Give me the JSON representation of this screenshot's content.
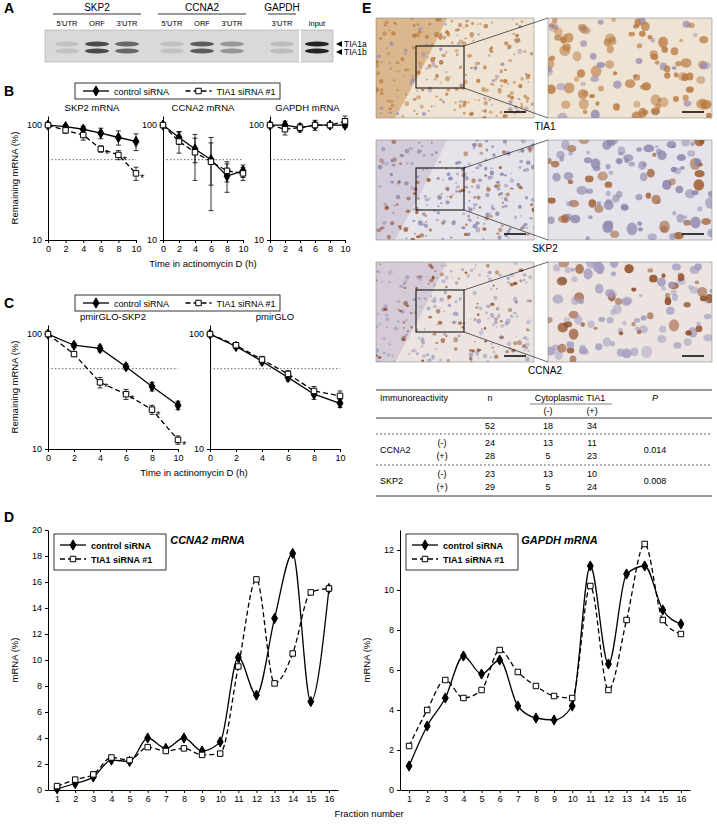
{
  "panel_labels": [
    "A",
    "B",
    "C",
    "D",
    "E"
  ],
  "gel": {
    "groups": [
      {
        "name": "SKP2",
        "lanes": [
          {
            "label": "5'UTR",
            "intensity": 0.12
          },
          {
            "label": "ORF",
            "intensity": 0.75
          },
          {
            "label": "3'UTR",
            "intensity": 0.6
          }
        ]
      },
      {
        "name": "CCNA2",
        "lanes": [
          {
            "label": "5'UTR",
            "intensity": 0.12
          },
          {
            "label": "ORF",
            "intensity": 0.65
          },
          {
            "label": "3'UTR",
            "intensity": 0.35
          }
        ]
      },
      {
        "name": "GAPDH",
        "lanes": [
          {
            "label": "3'UTR",
            "intensity": 0.15
          }
        ]
      }
    ],
    "input_lane": {
      "label": "input",
      "intensity": 0.95
    },
    "bands": [
      "TIA1a",
      "TIA1b"
    ]
  },
  "chart_data": [
    {
      "type": "line",
      "title": "SKP2 mRNA",
      "ylabel": "Remaining mRNA (%)",
      "x": [
        0,
        2,
        4,
        6,
        8,
        10
      ],
      "xlim": [
        0,
        10
      ],
      "xticks": [
        0,
        2,
        4,
        6,
        8,
        10
      ],
      "ylim": [
        10,
        120
      ],
      "yticks": [
        10,
        100
      ],
      "log": "y",
      "reference_y": 50,
      "legend": "top",
      "series": [
        {
          "name": "control siRNA",
          "color": "#000000",
          "marker": "diamond",
          "line_style": "solid",
          "values": [
            100,
            97,
            92,
            85,
            78,
            72
          ],
          "errors": [
            0,
            4,
            6,
            9,
            11,
            12
          ]
        },
        {
          "name": "TIA1 siRNA #1",
          "color": "#000000",
          "marker": "square-open",
          "line_style": "dashed",
          "values": [
            100,
            90,
            82,
            62,
            55,
            38
          ],
          "errors": [
            0,
            5,
            8,
            4,
            5,
            5
          ]
        }
      ],
      "annotations": [
        {
          "text": "*",
          "x": 6,
          "y": 62
        },
        {
          "text": "*",
          "x": 8,
          "y": 55
        },
        {
          "text": "*",
          "x": 10,
          "y": 38
        }
      ]
    },
    {
      "type": "line",
      "title": "CCNA2 mRNA",
      "xlabel": "Time in actinomycin D (h)",
      "x": [
        0,
        2,
        4,
        6,
        8,
        10
      ],
      "xlim": [
        0,
        10
      ],
      "xticks": [
        0,
        2,
        4,
        6,
        8,
        10
      ],
      "ylim": [
        10,
        120
      ],
      "yticks": [
        10,
        100
      ],
      "log": "y",
      "reference_y": 50,
      "series": [
        {
          "color": "#000000",
          "marker": "diamond",
          "line_style": "solid",
          "values": [
            100,
            78,
            62,
            50,
            36,
            40
          ],
          "errors": [
            0,
            10,
            15,
            20,
            10,
            5
          ]
        },
        {
          "color": "#000000",
          "marker": "square-open",
          "line_style": "dashed",
          "values": [
            100,
            72,
            58,
            48,
            40,
            38
          ],
          "errors": [
            0,
            15,
            25,
            30,
            8,
            5
          ]
        }
      ]
    },
    {
      "type": "line",
      "title": "GAPDH mRNA",
      "x": [
        0,
        2,
        4,
        6,
        8,
        10
      ],
      "xlim": [
        0,
        10
      ],
      "xticks": [
        0,
        2,
        4,
        6,
        8,
        10
      ],
      "ylim": [
        10,
        120
      ],
      "yticks": [
        10,
        100
      ],
      "log": "y",
      "reference_y": 50,
      "series": [
        {
          "color": "#000000",
          "marker": "diamond",
          "line_style": "solid",
          "values": [
            100,
            100,
            95,
            100,
            100,
            100
          ],
          "errors": [
            0,
            8,
            5,
            5,
            5,
            5
          ]
        },
        {
          "color": "#000000",
          "marker": "square-open",
          "line_style": "dashed",
          "values": [
            100,
            92,
            95,
            100,
            100,
            108
          ],
          "errors": [
            0,
            10,
            8,
            10,
            5,
            12
          ]
        }
      ]
    },
    {
      "type": "line",
      "title": "pmirGLO-SKP2",
      "ylabel": "Remaining mRNA (%)",
      "xlabel": "Time in actinomycin D (h)",
      "x": [
        0,
        2,
        4,
        6,
        8,
        10
      ],
      "xlim": [
        0,
        10
      ],
      "xticks": [
        0,
        2,
        4,
        6,
        8,
        10
      ],
      "ylim": [
        10,
        120
      ],
      "yticks": [
        10,
        100
      ],
      "log": "y",
      "reference_y": 50,
      "legend": "top",
      "series": [
        {
          "name": "control siRNA",
          "color": "#000000",
          "marker": "diamond",
          "line_style": "solid",
          "values": [
            100,
            80,
            75,
            52,
            35,
            24
          ],
          "errors": [
            0,
            3,
            5,
            3,
            3,
            2
          ]
        },
        {
          "name": "TIA1 siRNA #1",
          "color": "#000000",
          "marker": "square-open",
          "line_style": "dashed",
          "values": [
            100,
            67,
            38,
            30,
            22,
            12
          ],
          "errors": [
            0,
            3,
            4,
            3,
            2,
            1
          ]
        }
      ],
      "annotations": [
        {
          "text": "*",
          "x": 4,
          "y": 38
        },
        {
          "text": "*",
          "x": 6,
          "y": 30
        },
        {
          "text": "*",
          "x": 8,
          "y": 22
        },
        {
          "text": "*",
          "x": 10,
          "y": 12
        }
      ]
    },
    {
      "type": "line",
      "title": "pmirGLO",
      "x": [
        0,
        2,
        4,
        6,
        8,
        10
      ],
      "xlim": [
        0,
        10
      ],
      "xticks": [
        0,
        2,
        4,
        6,
        8,
        10
      ],
      "ylim": [
        10,
        120
      ],
      "yticks": [
        10,
        100
      ],
      "log": "y",
      "reference_y": 50,
      "series": [
        {
          "color": "#000000",
          "marker": "diamond",
          "line_style": "solid",
          "values": [
            100,
            78,
            58,
            42,
            30,
            25
          ],
          "errors": [
            0,
            3,
            4,
            3,
            3,
            2
          ]
        },
        {
          "color": "#000000",
          "marker": "square-open",
          "line_style": "dashed",
          "values": [
            100,
            80,
            60,
            45,
            32,
            29
          ],
          "errors": [
            0,
            3,
            4,
            3,
            3,
            3
          ]
        }
      ]
    },
    {
      "type": "line",
      "title": "CCNA2 mRNA",
      "ylabel": "mRNA (%)",
      "xlabel": "Fraction number",
      "x": [
        1,
        2,
        3,
        4,
        5,
        6,
        7,
        8,
        9,
        10,
        11,
        12,
        13,
        14,
        15,
        16
      ],
      "xlim": [
        0.5,
        16.5
      ],
      "xticks": [
        1,
        2,
        3,
        4,
        5,
        6,
        7,
        8,
        9,
        10,
        11,
        12,
        13,
        14,
        15,
        16
      ],
      "ylim": [
        0,
        20
      ],
      "yticks": [
        0,
        2,
        4,
        6,
        8,
        10,
        12,
        14,
        16,
        18,
        20
      ],
      "legend": "upper left",
      "series": [
        {
          "name": "control siRNA",
          "color": "#000000",
          "marker": "diamond",
          "line_style": "solid",
          "values": [
            0.1,
            0.5,
            1.0,
            2.3,
            2.2,
            4.0,
            3.2,
            4.0,
            3.0,
            3.7,
            10.2,
            7.3,
            13.2,
            18.2,
            6.8,
            15.5
          ]
        },
        {
          "name": "TIA1 siRNA #1",
          "color": "#000000",
          "marker": "square-open",
          "line_style": "dashed",
          "values": [
            0.3,
            0.8,
            1.2,
            2.5,
            2.3,
            3.3,
            3.0,
            3.2,
            2.7,
            2.8,
            9.5,
            16.2,
            8.2,
            10.5,
            15.2,
            15.5
          ]
        }
      ]
    },
    {
      "type": "line",
      "title": "GAPDH mRNA",
      "ylabel": "mRNA (%)",
      "x": [
        1,
        2,
        3,
        4,
        5,
        6,
        7,
        8,
        9,
        10,
        11,
        12,
        13,
        14,
        15,
        16
      ],
      "xlim": [
        0.5,
        16.5
      ],
      "xticks": [
        1,
        2,
        3,
        4,
        5,
        6,
        7,
        8,
        9,
        10,
        11,
        12,
        13,
        14,
        15,
        16
      ],
      "ylim": [
        0,
        13
      ],
      "yticks": [
        0,
        2,
        4,
        6,
        8,
        10,
        12
      ],
      "legend": "upper left",
      "series": [
        {
          "name": "control siRNA",
          "color": "#000000",
          "marker": "diamond",
          "line_style": "solid",
          "values": [
            1.2,
            3.2,
            4.6,
            6.7,
            5.8,
            6.5,
            4.2,
            3.6,
            3.5,
            4.2,
            11.2,
            6.3,
            10.8,
            11.2,
            9.0,
            8.3
          ]
        },
        {
          "name": "TIA1 siRNA #1",
          "color": "#000000",
          "marker": "square-open",
          "line_style": "dashed",
          "values": [
            2.2,
            4.0,
            5.5,
            4.6,
            5.0,
            7.0,
            5.9,
            5.2,
            4.7,
            4.6,
            10.2,
            5.0,
            8.5,
            12.3,
            8.5,
            7.8
          ]
        }
      ]
    }
  ],
  "ihc": {
    "stains": [
      "TIA1",
      "SKP2",
      "CCNA2"
    ]
  },
  "table": {
    "header": [
      "Immunoreactivity",
      "n",
      "Cytoplasmic TIA1",
      "P"
    ],
    "subheader": [
      "(-)",
      "(+)"
    ],
    "total": [
      52,
      18,
      34
    ],
    "groups": [
      {
        "name": "CCNA2",
        "p": 0.014,
        "rows": [
          [
            "(-)",
            24,
            13,
            11
          ],
          [
            "(+)",
            28,
            5,
            23
          ]
        ]
      },
      {
        "name": "SKP2",
        "p": 0.008,
        "rows": [
          [
            "(-)",
            23,
            13,
            10
          ],
          [
            "(+)",
            29,
            5,
            24
          ]
        ]
      }
    ]
  }
}
